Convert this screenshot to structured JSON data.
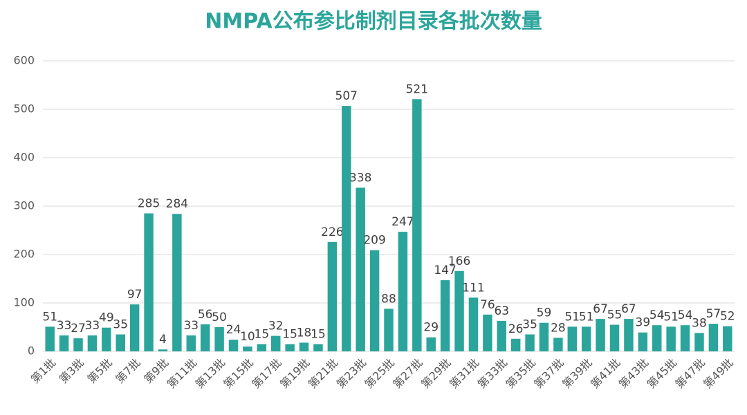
{
  "chart_data": {
    "type": "bar",
    "title": "NMPA公布参比制剂目录各批次数量",
    "categories": [
      "第1批",
      null,
      "第3批",
      null,
      "第5批",
      null,
      "第7批",
      null,
      "第9批",
      null,
      "第11批",
      null,
      "第13批",
      null,
      "第15批",
      null,
      "第17批",
      null,
      "第19批",
      null,
      "第21批",
      null,
      "第23批",
      null,
      "第25批",
      null,
      "第27批",
      null,
      "第29批",
      null,
      "第31批",
      null,
      "第33批",
      null,
      "第35批",
      null,
      "第37批",
      null,
      "第39批",
      null,
      "第41批",
      null,
      "第43批",
      null,
      "第45批",
      null,
      "第47批",
      null,
      "第49批"
    ],
    "values": [
      51,
      33,
      27,
      33,
      49,
      35,
      97,
      285,
      4,
      284,
      33,
      56,
      50,
      24,
      10,
      15,
      32,
      15,
      18,
      15,
      226,
      507,
      338,
      209,
      88,
      247,
      521,
      29,
      147,
      166,
      111,
      76,
      63,
      26,
      35,
      59,
      28,
      51,
      51,
      67,
      55,
      67,
      39,
      54,
      51,
      54,
      38,
      57,
      52
    ],
    "color": "#2ba59b",
    "ylim": [
      0,
      600
    ],
    "yticks": [
      0,
      100,
      200,
      300,
      400,
      500,
      600
    ],
    "grid": true
  }
}
